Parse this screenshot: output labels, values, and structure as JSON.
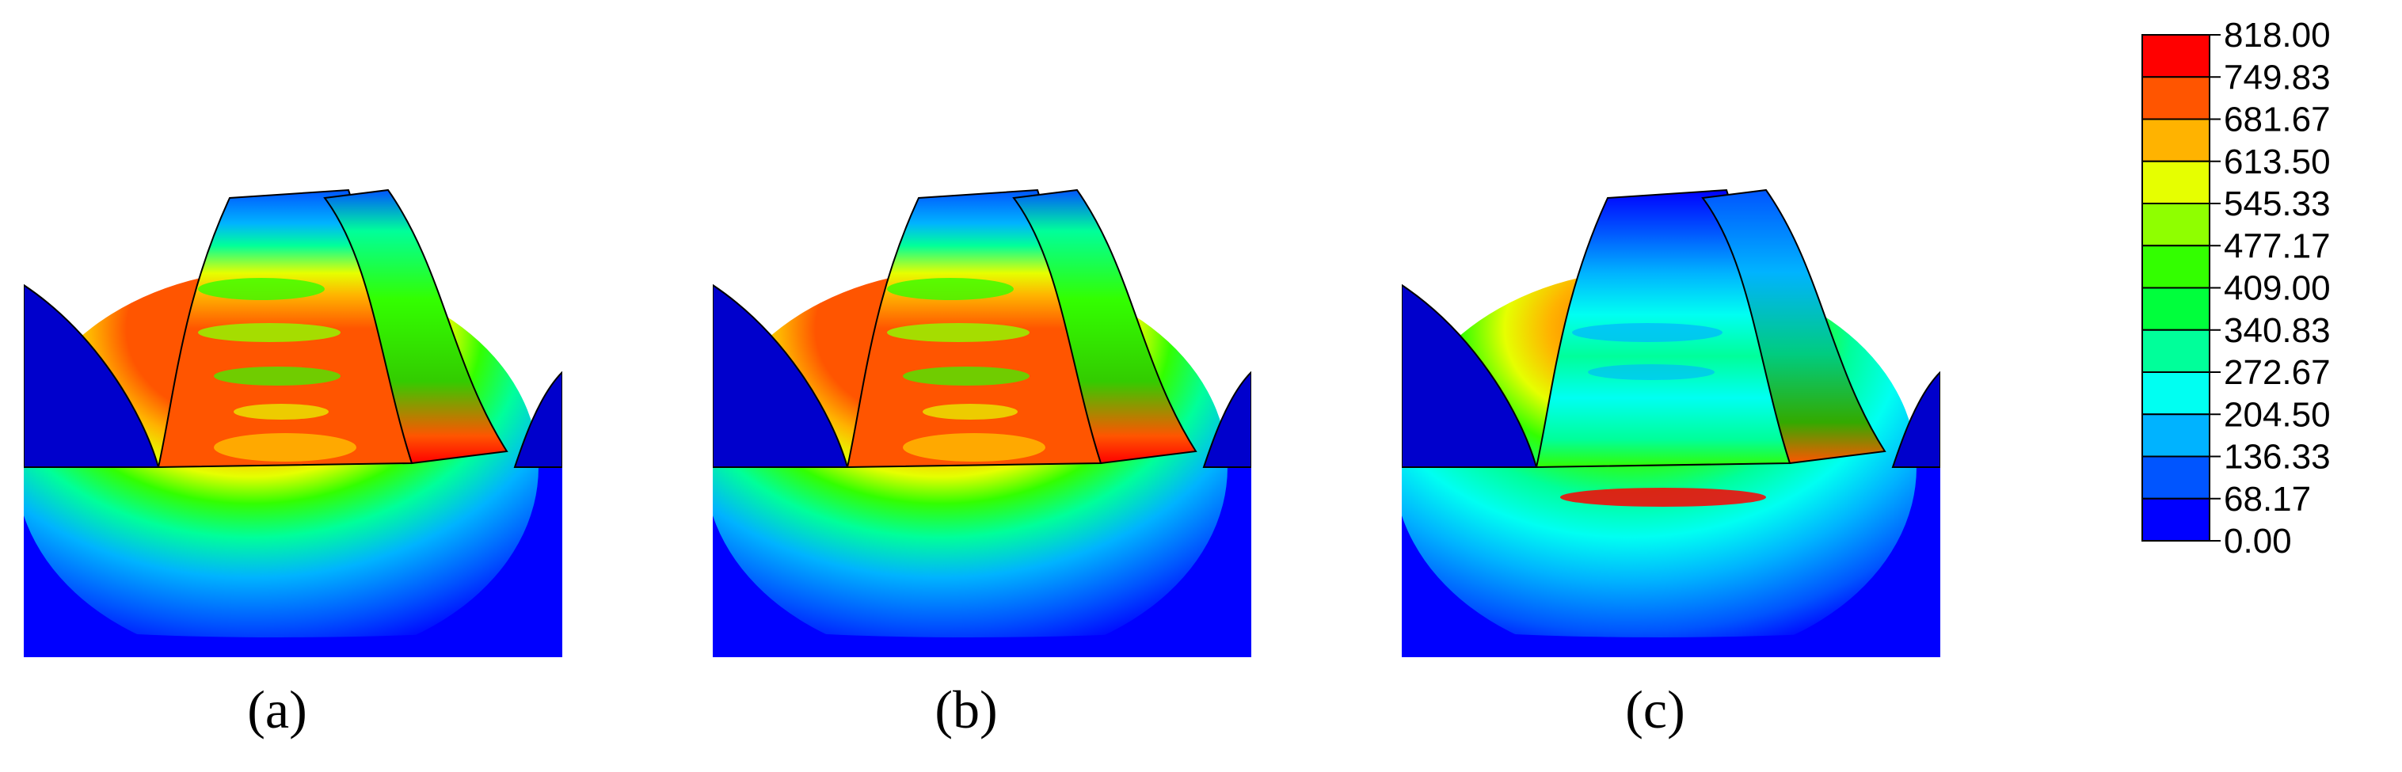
{
  "panels": [
    {
      "label": "a",
      "stress": "high"
    },
    {
      "label": "b",
      "stress": "high"
    },
    {
      "label": "c",
      "stress": "low"
    }
  ],
  "captions": {
    "a": "(a)",
    "b": "(b)",
    "c": "(c)"
  },
  "legend": {
    "labels": [
      "818.00",
      "749.83",
      "681.67",
      "613.50",
      "545.33",
      "477.17",
      "409.00",
      "340.83",
      "272.67",
      "204.50",
      "136.33",
      "68.17",
      "0.00"
    ],
    "colors": [
      "#ff0000",
      "#ff5500",
      "#ffb300",
      "#e6ff00",
      "#8fff00",
      "#33ff00",
      "#00ff3c",
      "#00ff9a",
      "#00fff2",
      "#00b3ff",
      "#0055ff",
      "#0000ff"
    ]
  }
}
